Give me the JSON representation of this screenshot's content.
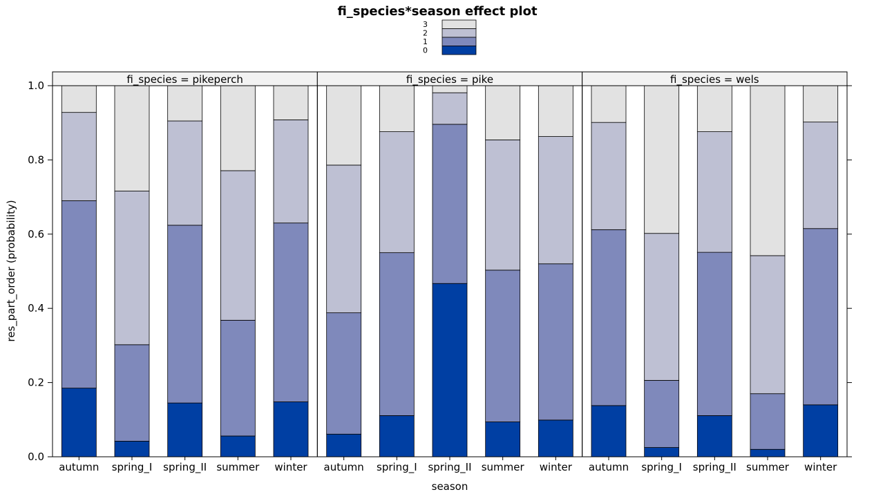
{
  "chart_data": {
    "type": "bar",
    "stacked": true,
    "title": "fi_species*season effect plot",
    "xlabel": "season",
    "ylabel": "res_part_order (probability)",
    "ylim": [
      0,
      1
    ],
    "yticks": [
      "0.0",
      "0.2",
      "0.4",
      "0.6",
      "0.8",
      "1.0"
    ],
    "yticks_values": [
      0,
      0.2,
      0.4,
      0.6,
      0.8,
      1.0
    ],
    "categories": [
      "autumn",
      "spring_I",
      "spring_II",
      "summer",
      "winter"
    ],
    "legend": {
      "placement": "top-center",
      "entries": [
        "3",
        "2",
        "1",
        "0"
      ]
    },
    "colors": {
      "0": "#003fa3",
      "1": "#7f89bb",
      "2": "#bec0d3",
      "3": "#e2e2e2"
    },
    "panels": [
      {
        "strip": "fi_species = pikeperch",
        "cumulative": [
          [
            0.185,
            0.69,
            0.928
          ],
          [
            0.042,
            0.302,
            0.716
          ],
          [
            0.145,
            0.624,
            0.905
          ],
          [
            0.056,
            0.368,
            0.771
          ],
          [
            0.148,
            0.63,
            0.908
          ]
        ]
      },
      {
        "strip": "fi_species = pike",
        "cumulative": [
          [
            0.061,
            0.388,
            0.786
          ],
          [
            0.111,
            0.55,
            0.876
          ],
          [
            0.467,
            0.896,
            0.981
          ],
          [
            0.094,
            0.503,
            0.854
          ],
          [
            0.099,
            0.52,
            0.863
          ]
        ]
      },
      {
        "strip": "fi_species = wels",
        "cumulative": [
          [
            0.138,
            0.612,
            0.901
          ],
          [
            0.025,
            0.206,
            0.602
          ],
          [
            0.111,
            0.551,
            0.876
          ],
          [
            0.02,
            0.17,
            0.542
          ],
          [
            0.14,
            0.615,
            0.902
          ]
        ]
      }
    ]
  }
}
